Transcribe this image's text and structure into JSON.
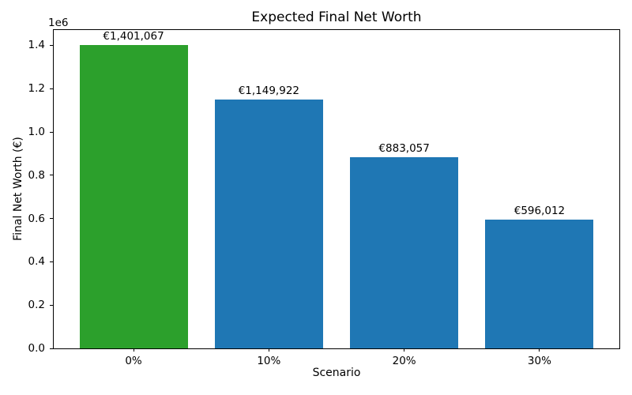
{
  "chart_data": {
    "type": "bar",
    "title": "Expected Final Net Worth",
    "xlabel": "Scenario",
    "ylabel": "Final Net Worth (€)",
    "offset_text": "1e6",
    "categories": [
      "0%",
      "10%",
      "20%",
      "30%"
    ],
    "values": [
      1401067,
      1149922,
      883057,
      596012
    ],
    "bar_labels": [
      "€1,401,067",
      "€1,149,922",
      "€883,057",
      "€596,012"
    ],
    "bar_colors": [
      "#2ca02c",
      "#1f77b4",
      "#1f77b4",
      "#1f77b4"
    ],
    "ylim": [
      0,
      1471120
    ],
    "yticks": [
      0,
      200000,
      400000,
      600000,
      800000,
      1000000,
      1200000,
      1400000
    ],
    "ytick_labels": [
      "0.0",
      "0.2",
      "0.4",
      "0.6",
      "0.8",
      "1.0",
      "1.2",
      "1.4"
    ],
    "grid": false,
    "legend": "none",
    "bar_width_frac": 0.8,
    "colors": {
      "highlight_bar": "#2ca02c",
      "default_bar": "#1f77b4",
      "axis": "#000000",
      "background": "#ffffff"
    }
  }
}
